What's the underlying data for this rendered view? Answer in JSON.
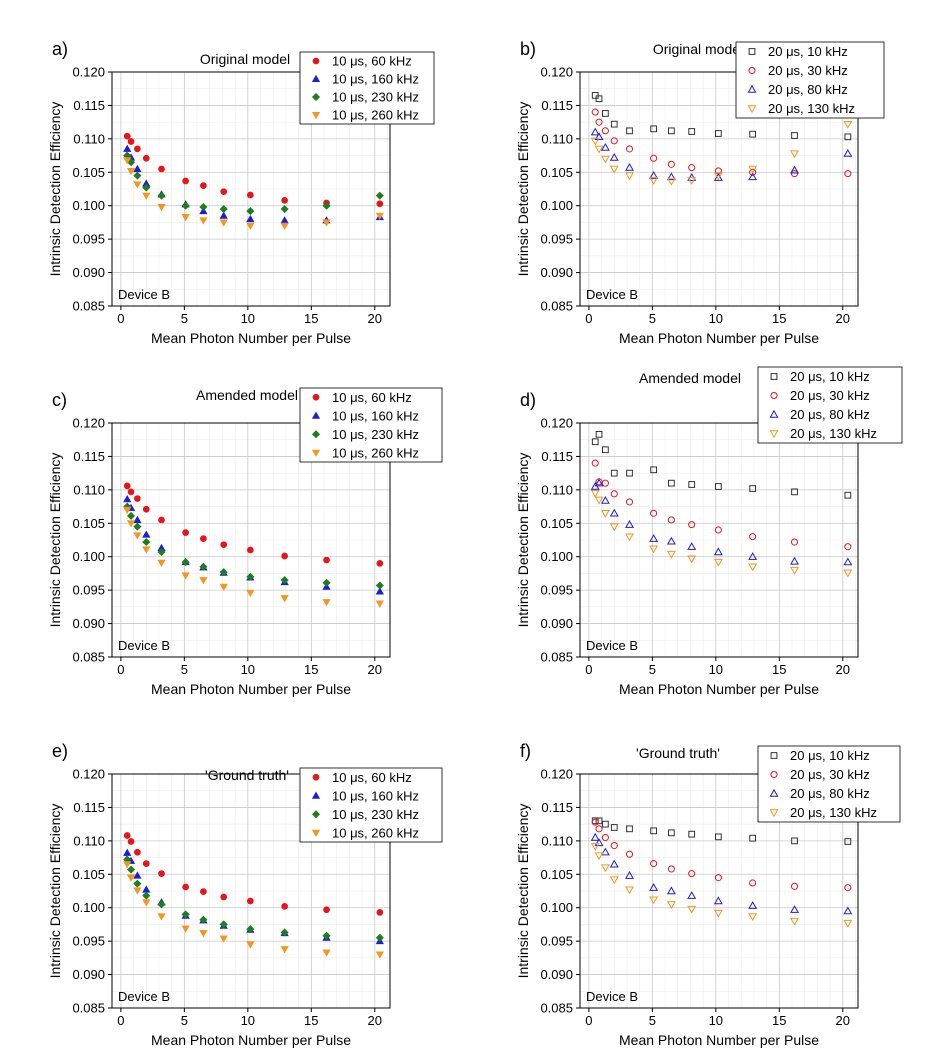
{
  "chart_data": [
    {
      "type": "scatter",
      "panel_label": "a)",
      "title": "Original model",
      "annotation": "Device B",
      "xlabel": "Mean Photon Number per Pulse",
      "ylabel": "Intrinsic Detection Efficiency",
      "xlim": [
        -0.7,
        21.2
      ],
      "ylim": [
        0.085,
        0.12
      ],
      "xticks": [
        0,
        5,
        10,
        15,
        20
      ],
      "yticks": [
        0.085,
        0.09,
        0.095,
        0.1,
        0.105,
        0.11,
        0.115,
        0.12
      ],
      "ytick_labels": [
        "0.085",
        "0.090",
        "0.095",
        "0.100",
        "0.105",
        "0.110",
        "0.115",
        "0.120"
      ],
      "legend_position": "top-right",
      "x": [
        0.5,
        0.8,
        1.3,
        2.0,
        3.2,
        5.1,
        6.5,
        8.1,
        10.2,
        12.9,
        16.2,
        20.4
      ],
      "series": [
        {
          "name": "10 μs, 60 kHz",
          "marker": "circle",
          "filled": true,
          "color": "#e8141b",
          "values": [
            0.1104,
            0.1096,
            0.1085,
            0.1071,
            0.1055,
            0.1037,
            0.103,
            0.1021,
            0.1016,
            0.1008,
            0.1004,
            0.1003
          ]
        },
        {
          "name": "10 μs, 160 kHz",
          "marker": "triangle-up",
          "filled": true,
          "color": "#1c1ce0",
          "values": [
            0.1085,
            0.1072,
            0.1055,
            0.1033,
            0.1017,
            0.1002,
            0.0992,
            0.0985,
            0.098,
            0.0978,
            0.0978,
            0.0983
          ]
        },
        {
          "name": "10 μs, 230 kHz",
          "marker": "diamond",
          "filled": true,
          "color": "#1e7d1e",
          "values": [
            0.1075,
            0.1065,
            0.1045,
            0.1027,
            0.1015,
            0.1,
            0.0998,
            0.0995,
            0.0992,
            0.0995,
            0.1,
            0.1015
          ]
        },
        {
          "name": "10 μs, 260 kHz",
          "marker": "triangle-down",
          "filled": true,
          "color": "#f5961e",
          "values": [
            0.1068,
            0.1052,
            0.1032,
            0.1015,
            0.0998,
            0.0983,
            0.0978,
            0.0975,
            0.097,
            0.097,
            0.0975,
            0.0985
          ]
        }
      ]
    },
    {
      "type": "scatter",
      "panel_label": "b)",
      "title": "Original model",
      "annotation": "Device B",
      "xlabel": "Mean Photon Number per Pulse",
      "ylabel": "Intrinsic Detection Efficiency",
      "xlim": [
        -0.7,
        21.2
      ],
      "ylim": [
        0.085,
        0.12
      ],
      "xticks": [
        0,
        5,
        10,
        15,
        20
      ],
      "yticks": [
        0.085,
        0.09,
        0.095,
        0.1,
        0.105,
        0.11,
        0.115,
        0.12
      ],
      "ytick_labels": [
        "0.085",
        "0.090",
        "0.095",
        "0.100",
        "0.105",
        "0.110",
        "0.115",
        "0.120"
      ],
      "legend_position": "top-right",
      "x": [
        0.5,
        0.8,
        1.3,
        2.0,
        3.2,
        5.1,
        6.5,
        8.1,
        10.2,
        12.9,
        16.2,
        20.4
      ],
      "series": [
        {
          "name": "20 μs, 10 kHz",
          "marker": "square",
          "filled": false,
          "color": "#333333",
          "values": [
            0.1165,
            0.116,
            0.1138,
            0.1122,
            0.1112,
            0.1115,
            0.1112,
            0.1111,
            0.1108,
            0.1107,
            0.1105,
            0.1103
          ]
        },
        {
          "name": "20 μs, 30 kHz",
          "marker": "circle",
          "filled": false,
          "color": "#e8141b",
          "values": [
            0.114,
            0.1125,
            0.1112,
            0.1097,
            0.1085,
            0.1071,
            0.1062,
            0.1057,
            0.1052,
            0.105,
            0.1048,
            0.1048
          ]
        },
        {
          "name": "20 μs, 80 kHz",
          "marker": "triangle-up",
          "filled": false,
          "color": "#1c1ce0",
          "values": [
            0.111,
            0.1103,
            0.1087,
            0.1072,
            0.1057,
            0.1045,
            0.1043,
            0.1042,
            0.1042,
            0.1043,
            0.1053,
            0.1078
          ]
        },
        {
          "name": "20 μs, 130 kHz",
          "marker": "triangle-down",
          "filled": false,
          "color": "#f5961e",
          "values": [
            0.1097,
            0.1085,
            0.107,
            0.1055,
            0.1045,
            0.1038,
            0.1037,
            0.1038,
            0.1045,
            0.1055,
            0.1078,
            0.1122
          ]
        }
      ]
    },
    {
      "type": "scatter",
      "panel_label": "c)",
      "title": "Amended model",
      "annotation": "Device B",
      "xlabel": "Mean Photon Number per Pulse",
      "ylabel": "Intrinsic Detection Efficiency",
      "xlim": [
        -0.7,
        21.2
      ],
      "ylim": [
        0.085,
        0.12
      ],
      "xticks": [
        0,
        5,
        10,
        15,
        20
      ],
      "yticks": [
        0.085,
        0.09,
        0.095,
        0.1,
        0.105,
        0.11,
        0.115,
        0.12
      ],
      "ytick_labels": [
        "0.085",
        "0.090",
        "0.095",
        "0.100",
        "0.105",
        "0.110",
        "0.115",
        "0.120"
      ],
      "legend_position": "top-right",
      "x": [
        0.5,
        0.8,
        1.3,
        2.0,
        3.2,
        5.1,
        6.5,
        8.1,
        10.2,
        12.9,
        16.2,
        20.4
      ],
      "series": [
        {
          "name": "10 μs, 60 kHz",
          "marker": "circle",
          "filled": true,
          "color": "#e8141b",
          "values": [
            0.1106,
            0.1097,
            0.1087,
            0.1071,
            0.1055,
            0.1036,
            0.1027,
            0.1018,
            0.101,
            0.1001,
            0.0995,
            0.099
          ]
        },
        {
          "name": "10 μs, 160 kHz",
          "marker": "triangle-up",
          "filled": true,
          "color": "#1c1ce0",
          "values": [
            0.1086,
            0.1073,
            0.1055,
            0.1033,
            0.1013,
            0.0992,
            0.0984,
            0.0976,
            0.0969,
            0.0962,
            0.0955,
            0.0948
          ]
        },
        {
          "name": "10 μs, 230 kHz",
          "marker": "diamond",
          "filled": true,
          "color": "#1e7d1e",
          "values": [
            0.1075,
            0.1061,
            0.1045,
            0.1022,
            0.1007,
            0.0992,
            0.0985,
            0.0977,
            0.097,
            0.0965,
            0.0961,
            0.0957
          ]
        },
        {
          "name": "10 μs, 260 kHz",
          "marker": "triangle-down",
          "filled": true,
          "color": "#f5961e",
          "values": [
            0.107,
            0.105,
            0.1032,
            0.1011,
            0.0991,
            0.0972,
            0.0965,
            0.0955,
            0.0946,
            0.0938,
            0.0932,
            0.093
          ]
        }
      ]
    },
    {
      "type": "scatter",
      "panel_label": "d)",
      "title": "Amended model",
      "annotation": "Device B",
      "xlabel": "Mean Photon Number per Pulse",
      "ylabel": "Intrinsic Detection Efficiency",
      "xlim": [
        -0.7,
        21.2
      ],
      "ylim": [
        0.085,
        0.12
      ],
      "xticks": [
        0,
        5,
        10,
        15,
        20
      ],
      "yticks": [
        0.085,
        0.09,
        0.095,
        0.1,
        0.105,
        0.11,
        0.115,
        0.12
      ],
      "ytick_labels": [
        "0.085",
        "0.090",
        "0.095",
        "0.100",
        "0.105",
        "0.110",
        "0.115",
        "0.120"
      ],
      "legend_position": "top-right",
      "x": [
        0.5,
        0.8,
        1.3,
        2.0,
        3.2,
        5.1,
        6.5,
        8.1,
        10.2,
        12.9,
        16.2,
        20.4
      ],
      "series": [
        {
          "name": "20 μs, 10 kHz",
          "marker": "square",
          "filled": false,
          "color": "#333333",
          "values": [
            0.1172,
            0.1183,
            0.116,
            0.1125,
            0.1125,
            0.113,
            0.111,
            0.1108,
            0.1105,
            0.1102,
            0.1097,
            0.1092
          ]
        },
        {
          "name": "20 μs, 30 kHz",
          "marker": "circle",
          "filled": false,
          "color": "#e8141b",
          "values": [
            0.114,
            0.1112,
            0.111,
            0.1094,
            0.1082,
            0.1065,
            0.1055,
            0.1048,
            0.104,
            0.103,
            0.1022,
            0.1015
          ]
        },
        {
          "name": "20 μs, 80 kHz",
          "marker": "triangle-up",
          "filled": false,
          "color": "#1c1ce0",
          "values": [
            0.1105,
            0.111,
            0.1084,
            0.1065,
            0.1048,
            0.1027,
            0.1023,
            0.1015,
            0.1007,
            0.1,
            0.0993,
            0.0992
          ]
        },
        {
          "name": "20 μs, 130 kHz",
          "marker": "triangle-down",
          "filled": false,
          "color": "#f5961e",
          "values": [
            0.1095,
            0.1085,
            0.1065,
            0.1045,
            0.103,
            0.1012,
            0.1004,
            0.0997,
            0.0992,
            0.0985,
            0.098,
            0.0976
          ]
        }
      ]
    },
    {
      "type": "scatter",
      "panel_label": "e)",
      "title": "'Ground truth'",
      "annotation": "Device B",
      "xlabel": "Mean Photon Number per Pulse",
      "ylabel": "Intrinsic Detection Efficiency",
      "xlim": [
        -0.7,
        21.2
      ],
      "ylim": [
        0.085,
        0.12
      ],
      "xticks": [
        0,
        5,
        10,
        15,
        20
      ],
      "yticks": [
        0.085,
        0.09,
        0.095,
        0.1,
        0.105,
        0.11,
        0.115,
        0.12
      ],
      "ytick_labels": [
        "0.085",
        "0.090",
        "0.095",
        "0.100",
        "0.105",
        "0.110",
        "0.115",
        "0.120"
      ],
      "legend_position": "top-right",
      "x": [
        0.5,
        0.8,
        1.3,
        2.0,
        3.2,
        5.1,
        6.5,
        8.1,
        10.2,
        12.9,
        16.2,
        20.4
      ],
      "series": [
        {
          "name": "10 μs, 60 kHz",
          "marker": "circle",
          "filled": true,
          "color": "#e8141b",
          "values": [
            0.1108,
            0.1099,
            0.1083,
            0.1066,
            0.1051,
            0.1031,
            0.1024,
            0.1016,
            0.101,
            0.1002,
            0.0997,
            0.0993
          ]
        },
        {
          "name": "10 μs, 160 kHz",
          "marker": "triangle-up",
          "filled": true,
          "color": "#1c1ce0",
          "values": [
            0.1082,
            0.107,
            0.1048,
            0.1027,
            0.1008,
            0.0988,
            0.0981,
            0.0973,
            0.0967,
            0.0962,
            0.0955,
            0.095
          ]
        },
        {
          "name": "10 μs, 230 kHz",
          "marker": "diamond",
          "filled": true,
          "color": "#1e7d1e",
          "values": [
            0.1072,
            0.1057,
            0.1036,
            0.1018,
            0.1005,
            0.099,
            0.0982,
            0.0975,
            0.0968,
            0.0963,
            0.0958,
            0.0955
          ]
        },
        {
          "name": "10 μs, 260 kHz",
          "marker": "triangle-down",
          "filled": true,
          "color": "#f5961e",
          "values": [
            0.1065,
            0.1045,
            0.1026,
            0.1008,
            0.0987,
            0.0969,
            0.0962,
            0.0954,
            0.0945,
            0.0938,
            0.0933,
            0.093
          ]
        }
      ]
    },
    {
      "type": "scatter",
      "panel_label": "f)",
      "title": "'Ground truth'",
      "annotation": "Device B",
      "xlabel": "Mean Photon Number per Pulse",
      "ylabel": "Intrinsic Detection Efficiency",
      "xlim": [
        -0.7,
        21.2
      ],
      "ylim": [
        0.085,
        0.12
      ],
      "xticks": [
        0,
        5,
        10,
        15,
        20
      ],
      "yticks": [
        0.085,
        0.09,
        0.095,
        0.1,
        0.105,
        0.11,
        0.115,
        0.12
      ],
      "ytick_labels": [
        "0.085",
        "0.090",
        "0.095",
        "0.100",
        "0.105",
        "0.110",
        "0.115",
        "0.120"
      ],
      "legend_position": "top-right",
      "x": [
        0.5,
        0.8,
        1.3,
        2.0,
        3.2,
        5.1,
        6.5,
        8.1,
        10.2,
        12.9,
        16.2,
        20.4
      ],
      "series": [
        {
          "name": "20 μs, 10 kHz",
          "marker": "square",
          "filled": false,
          "color": "#333333",
          "values": [
            0.113,
            0.113,
            0.1125,
            0.112,
            0.1118,
            0.1115,
            0.1112,
            0.111,
            0.1106,
            0.1104,
            0.11,
            0.1099
          ]
        },
        {
          "name": "20 μs, 30 kHz",
          "marker": "circle",
          "filled": false,
          "color": "#e8141b",
          "values": [
            0.1128,
            0.1118,
            0.1105,
            0.1093,
            0.108,
            0.1066,
            0.1058,
            0.1051,
            0.1045,
            0.1037,
            0.1032,
            0.103
          ]
        },
        {
          "name": "20 μs, 80 kHz",
          "marker": "triangle-up",
          "filled": false,
          "color": "#1c1ce0",
          "values": [
            0.1105,
            0.1097,
            0.1083,
            0.1065,
            0.1048,
            0.103,
            0.1025,
            0.1018,
            0.101,
            0.1003,
            0.0997,
            0.0995
          ]
        },
        {
          "name": "20 μs, 130 kHz",
          "marker": "triangle-down",
          "filled": false,
          "color": "#f5961e",
          "values": [
            0.1092,
            0.1078,
            0.106,
            0.1042,
            0.1027,
            0.1012,
            0.1005,
            0.0998,
            0.0992,
            0.0987,
            0.098,
            0.0977
          ]
        }
      ]
    }
  ]
}
